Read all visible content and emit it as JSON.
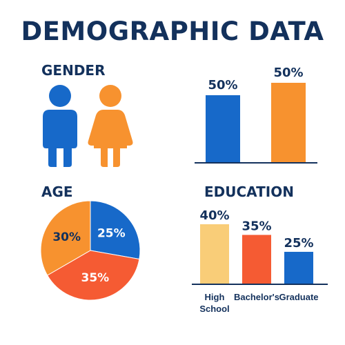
{
  "title": "DEMOGRAPHIC DATA",
  "colors": {
    "navy": "#13315c",
    "blue": "#1769c9",
    "orange": "#f7922f",
    "red_orange": "#f55b33",
    "light_orange": "#f9cd78"
  },
  "gender": {
    "heading": "GENDER",
    "icons": [
      "male-person-icon",
      "female-person-icon"
    ]
  },
  "age": {
    "heading": "AGE"
  },
  "education": {
    "heading": "EDUCATION"
  },
  "chart_data": [
    {
      "id": "gender",
      "type": "bar",
      "categories": [
        "Male",
        "Female"
      ],
      "values": [
        50,
        50
      ],
      "value_labels": [
        "50%",
        "50%"
      ],
      "colors": [
        "#1769c9",
        "#f7922f"
      ],
      "title": "GENDER",
      "xlabel": "",
      "ylabel": ""
    },
    {
      "id": "age",
      "type": "pie",
      "values": [
        25,
        35,
        30
      ],
      "value_labels": [
        "25%",
        "35%",
        "30%"
      ],
      "colors": [
        "#1769c9",
        "#f55b33",
        "#f7922f"
      ],
      "title": "AGE"
    },
    {
      "id": "education",
      "type": "bar",
      "categories": [
        "High School",
        "Bachelor's",
        "Graduate"
      ],
      "category_lines": [
        [
          "High",
          "School"
        ],
        [
          "Bachelor's"
        ],
        [
          "Graduate"
        ]
      ],
      "values": [
        40,
        35,
        25
      ],
      "value_labels": [
        "40%",
        "35%",
        "25%"
      ],
      "colors": [
        "#f9cd78",
        "#f55b33",
        "#1769c9"
      ],
      "title": "EDUCATION",
      "xlabel": "",
      "ylabel": ""
    }
  ]
}
